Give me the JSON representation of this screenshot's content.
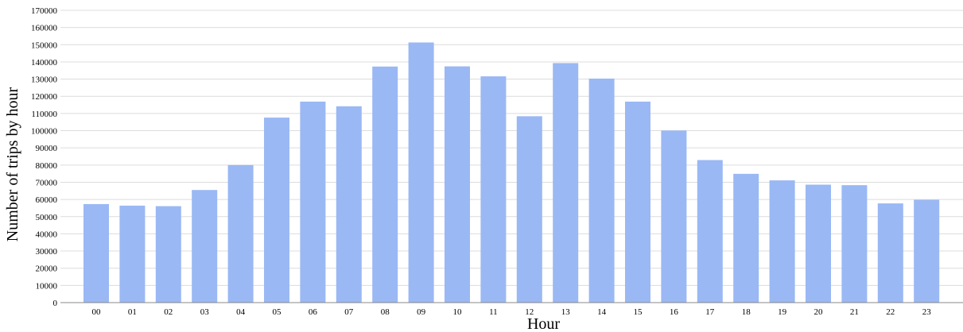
{
  "chart_data": {
    "type": "bar",
    "title": "",
    "xlabel": "Hour",
    "ylabel": "Number of trips by hour",
    "categories": [
      "00",
      "01",
      "02",
      "03",
      "04",
      "05",
      "06",
      "07",
      "08",
      "09",
      "10",
      "11",
      "12",
      "13",
      "14",
      "15",
      "16",
      "17",
      "18",
      "19",
      "20",
      "21",
      "22",
      "23"
    ],
    "values": [
      57300,
      56400,
      56100,
      65500,
      80000,
      107600,
      116900,
      114200,
      137300,
      151300,
      137400,
      131600,
      108400,
      139300,
      130300,
      116900,
      100100,
      82900,
      74900,
      71100,
      68600,
      68300,
      57700,
      59800
    ],
    "ylim": [
      0,
      170000
    ],
    "yticks": [
      0,
      10000,
      20000,
      30000,
      40000,
      50000,
      60000,
      70000,
      80000,
      90000,
      100000,
      110000,
      120000,
      130000,
      140000,
      150000,
      160000,
      170000
    ],
    "grid": true,
    "bar_color": "#9ab8f4",
    "grid_color": "#dcdcdc"
  }
}
